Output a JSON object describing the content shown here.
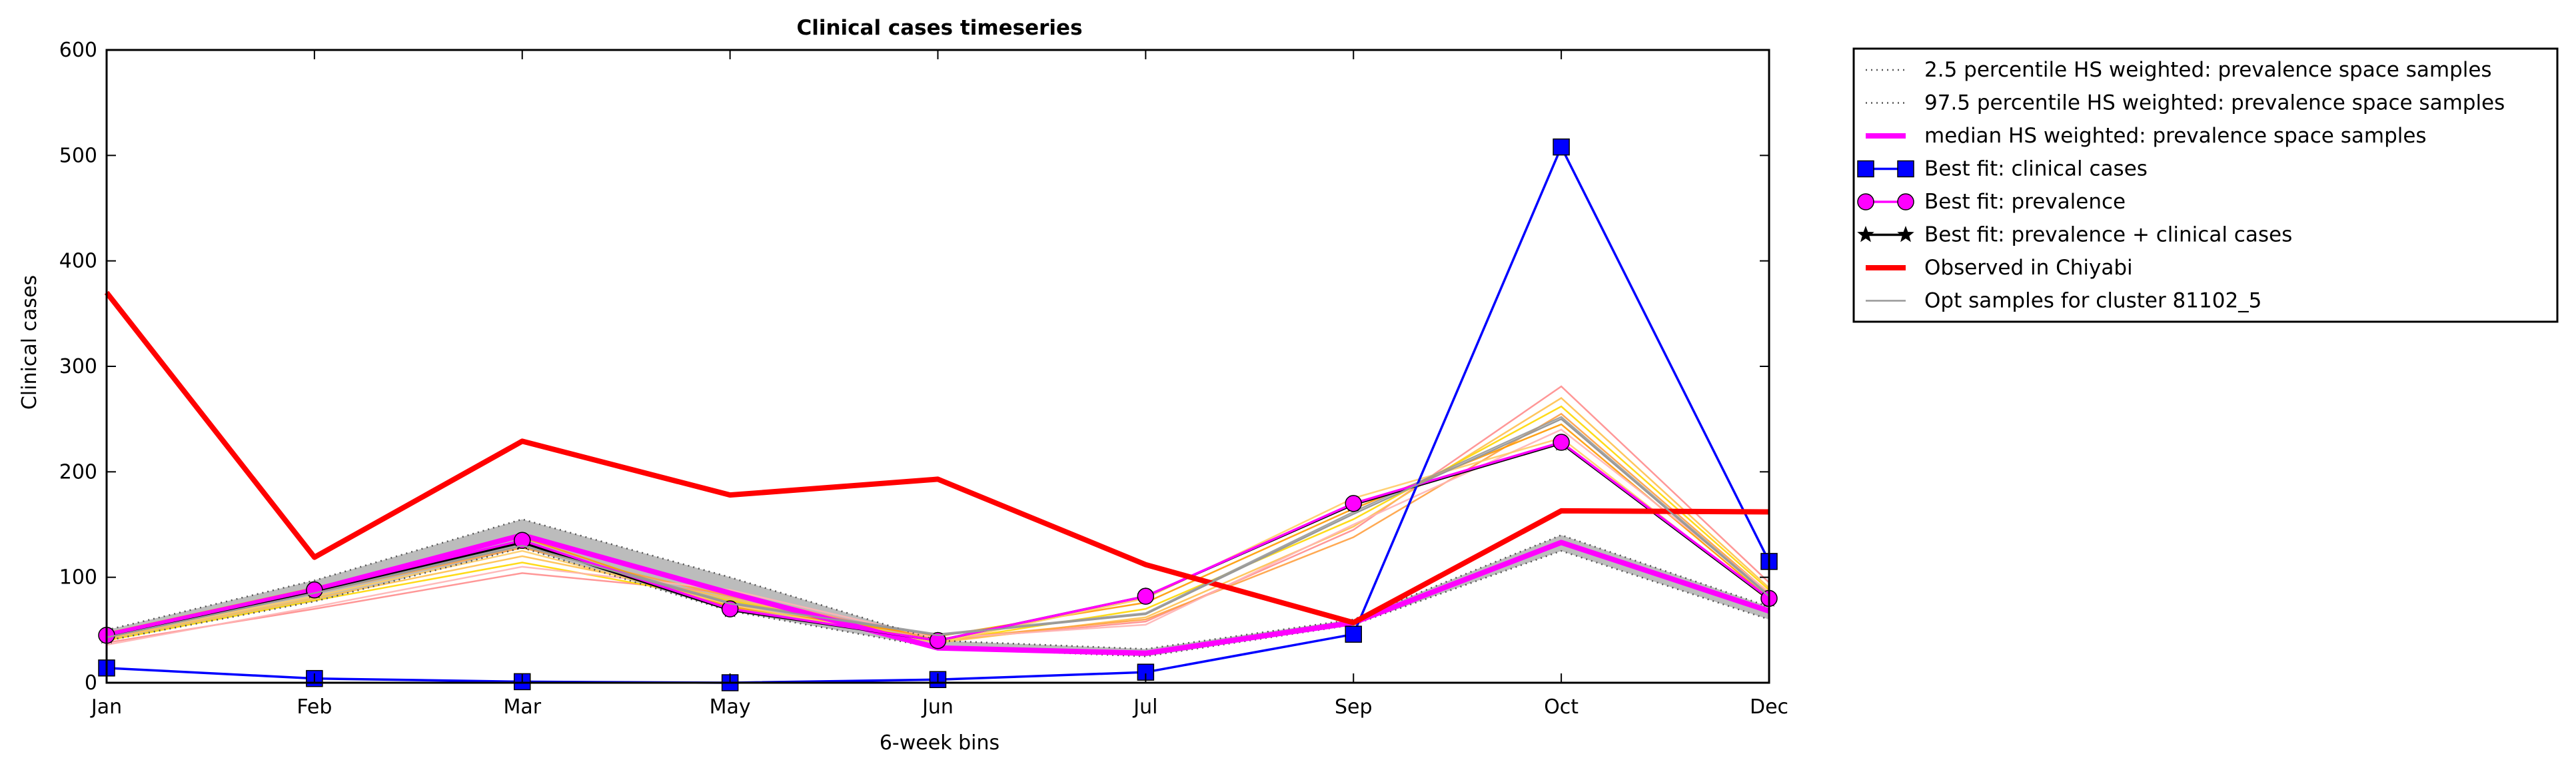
{
  "chart_data": {
    "type": "line",
    "title": "Clinical cases timeseries",
    "xlabel": "6-week bins",
    "ylabel": "Clinical cases",
    "categories": [
      "Jan",
      "Feb",
      "Mar",
      "May",
      "Jun",
      "Jul",
      "Sep",
      "Oct",
      "Dec"
    ],
    "ylim": [
      0,
      600
    ],
    "yticks": [
      0,
      100,
      200,
      300,
      400,
      500,
      600
    ],
    "grid": false,
    "legend_position": "outside-right",
    "band": {
      "lower": [
        40,
        77,
        128,
        68,
        33,
        25,
        55,
        125,
        60
      ],
      "upper": [
        50,
        97,
        155,
        100,
        40,
        32,
        60,
        140,
        72
      ],
      "color": "#b0b0b0"
    },
    "series": [
      {
        "name": "2.5 percentile HS weighted: prevalence space samples",
        "style": "dotted",
        "color": "#555555",
        "values": [
          40,
          77,
          128,
          68,
          33,
          25,
          55,
          125,
          60
        ]
      },
      {
        "name": "97.5 percentile HS weighted: prevalence space samples",
        "style": "dotted",
        "color": "#555555",
        "values": [
          50,
          97,
          155,
          100,
          40,
          32,
          60,
          140,
          72
        ]
      },
      {
        "name": "median HS weighted: prevalence space samples",
        "style": "thick",
        "color": "#ff00ff",
        "values": [
          45,
          88,
          140,
          85,
          33,
          28,
          57,
          133,
          68
        ]
      },
      {
        "name": "Best fit: clinical cases",
        "style": "square-marker",
        "color": "#0000ff",
        "values": [
          14,
          4,
          1,
          0,
          3,
          10,
          46,
          508,
          115
        ]
      },
      {
        "name": "Best fit: prevalence",
        "style": "circle-marker",
        "color": "#ff00ff",
        "values": [
          45,
          88,
          135,
          70,
          40,
          82,
          170,
          228,
          80
        ]
      },
      {
        "name": "Best fit: prevalence + clinical cases",
        "style": "star-marker",
        "color": "#000000",
        "values": [
          44,
          87,
          133,
          69,
          40,
          82,
          169,
          227,
          79
        ]
      },
      {
        "name": "Observed in Chiyabi",
        "style": "thick",
        "color": "#ff0000",
        "values": [
          370,
          119,
          229,
          178,
          193,
          112,
          57,
          163,
          162
        ]
      },
      {
        "name": "Opt samples for cluster 81102_5",
        "style": "thin",
        "color": "#999999",
        "values": [
          43,
          85,
          130,
          75,
          45,
          65,
          160,
          250,
          82
        ]
      }
    ],
    "sample_lines": [
      {
        "color": "#ff8c8c",
        "values": [
          38,
          70,
          104,
          85,
          40,
          58,
          145,
          281,
          95
        ]
      },
      {
        "color": "#ffc04d",
        "values": [
          42,
          80,
          120,
          80,
          38,
          62,
          148,
          270,
          90
        ]
      },
      {
        "color": "#ffd700",
        "values": [
          40,
          78,
          114,
          78,
          39,
          70,
          155,
          262,
          88
        ]
      },
      {
        "color": "#ffa040",
        "values": [
          45,
          85,
          128,
          82,
          41,
          60,
          138,
          255,
          85
        ]
      },
      {
        "color": "#ff9900",
        "values": [
          47,
          90,
          138,
          72,
          44,
          76,
          165,
          245,
          80
        ]
      },
      {
        "color": "#ffb3b3",
        "values": [
          36,
          72,
          110,
          88,
          42,
          55,
          150,
          240,
          86
        ]
      },
      {
        "color": "#ffcc66",
        "values": [
          44,
          82,
          125,
          74,
          38,
          80,
          175,
          232,
          78
        ]
      },
      {
        "color": "#999999",
        "values": [
          43,
          86,
          132,
          76,
          46,
          66,
          162,
          252,
          83
        ]
      }
    ]
  }
}
